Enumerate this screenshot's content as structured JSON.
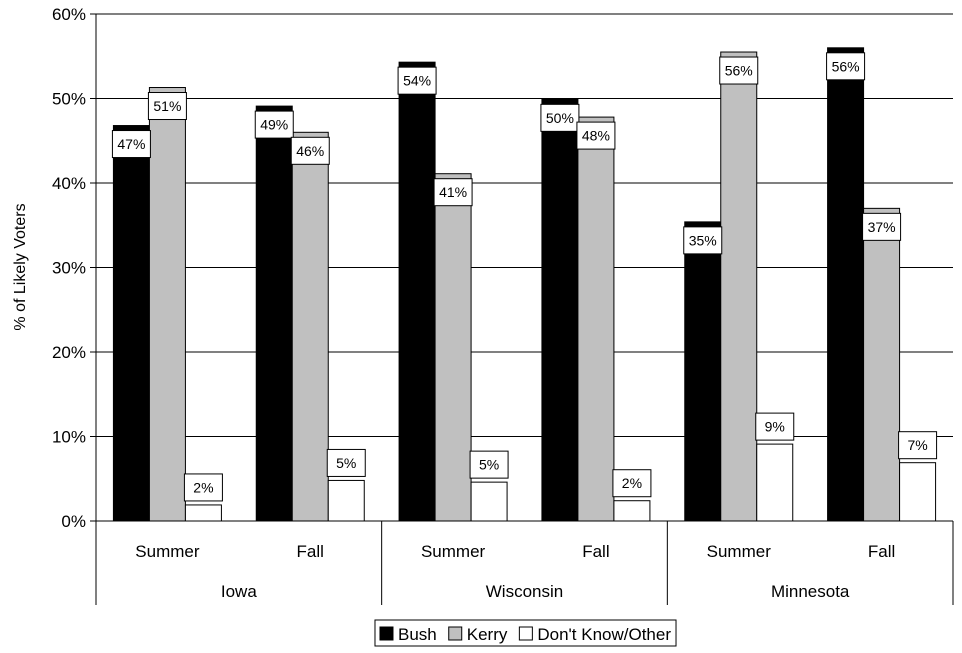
{
  "chart_data": {
    "type": "bar",
    "title": "",
    "xlabel": "",
    "ylabel": "% of Likely Voters",
    "ylim": [
      0,
      60
    ],
    "yticks": [
      "0%",
      "10%",
      "20%",
      "30%",
      "40%",
      "50%",
      "60%"
    ],
    "grid": "horizontal",
    "legend_position": "bottom",
    "groups": [
      "Iowa",
      "Wisconsin",
      "Minnesota"
    ],
    "categories": [
      "Summer",
      "Fall",
      "Summer",
      "Fall",
      "Summer",
      "Fall"
    ],
    "series": [
      {
        "name": "Bush",
        "color": "#000000",
        "values": [
          46.8,
          49.1,
          54.3,
          49.9,
          35.4,
          56.0
        ],
        "labels": [
          "47%",
          "49%",
          "54%",
          "50%",
          "35%",
          "56%"
        ]
      },
      {
        "name": "Kerry",
        "color": "#c0c0c0",
        "values": [
          51.3,
          46.0,
          41.1,
          47.8,
          55.5,
          37.0
        ],
        "labels": [
          "51%",
          "46%",
          "41%",
          "48%",
          "56%",
          "37%"
        ]
      },
      {
        "name": "Don't Know/Other",
        "color": "#ffffff",
        "values": [
          1.9,
          4.8,
          4.6,
          2.4,
          9.1,
          6.9
        ],
        "labels": [
          "2%",
          "5%",
          "5%",
          "2%",
          "9%",
          "7%"
        ]
      }
    ]
  }
}
